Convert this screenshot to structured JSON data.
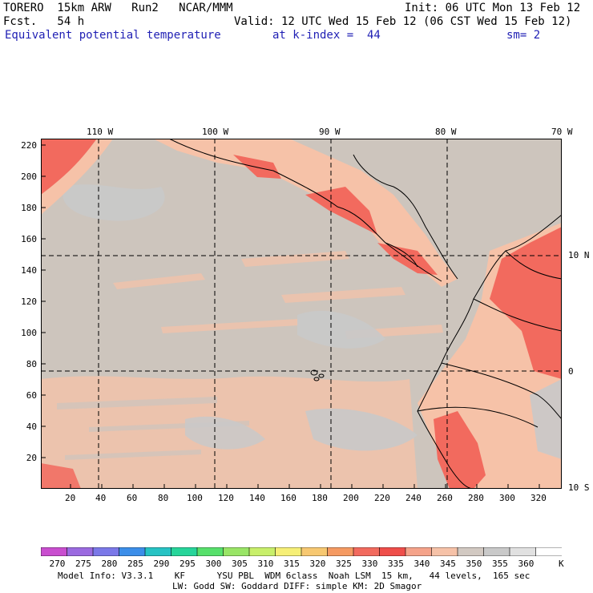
{
  "header": {
    "model": "TORERO  15km ARW   Run2   NCAR/MMM",
    "init": "Init: 06 UTC Mon 13 Feb 12",
    "fcst": "Fcst.   54 h",
    "valid": "Valid: 12 UTC Wed 15 Feb 12 (06 CST Wed 15 Feb 12)",
    "field": "Equivalent potential temperature",
    "kindex": "at k-index =  44",
    "smooth": "sm= 2"
  },
  "map": {
    "lon_labels": [
      "110 W",
      "100 W",
      "90 W",
      "80 W",
      "70 W"
    ],
    "lat_labels": [
      "10 N",
      "0",
      "10 S"
    ],
    "y_ticks": [
      "220",
      "200",
      "180",
      "160",
      "140",
      "120",
      "100",
      "80",
      "60",
      "40",
      "20"
    ],
    "x_ticks": [
      "20",
      "40",
      "60",
      "80",
      "100",
      "120",
      "140",
      "160",
      "180",
      "200",
      "220",
      "240",
      "260",
      "280",
      "300",
      "320"
    ],
    "background_color": "#cdc5bd",
    "warm_color": "#f6c2a8",
    "hot_color": "#f26a5e",
    "hotter_color": "#ef4e4a",
    "gray_patch_color": "#c9c9c9"
  },
  "colorbar": {
    "labels": [
      "270",
      "275",
      "280",
      "285",
      "290",
      "295",
      "300",
      "305",
      "310",
      "315",
      "320",
      "325",
      "330",
      "335",
      "340",
      "345",
      "350",
      "355",
      "360",
      "K"
    ],
    "colors": [
      "#c94ecf",
      "#9b6ae0",
      "#7b78e8",
      "#3c8ee9",
      "#27c3c4",
      "#27d59a",
      "#57e06b",
      "#99e566",
      "#c8ef6a",
      "#f6ef76",
      "#f7c871",
      "#f59a62",
      "#f26a5e",
      "#ef4e4a",
      "#f5a38a",
      "#f6c2a8",
      "#d2c9c2",
      "#c9c9c9",
      "#e1e1e1",
      "#ffffff"
    ]
  },
  "footer": {
    "line1": "Model Info: V3.3.1    KF      YSU PBL  WDM 6class  Noah LSM  15 km,   44 levels,  165 sec",
    "line2": "LW: Godd SW: Goddard DIFF: simple KM: 2D Smagor"
  }
}
